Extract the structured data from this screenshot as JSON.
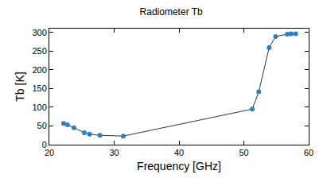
{
  "chart_data": {
    "type": "line",
    "title": "Radiometer Tb",
    "x_label": "Frequency [GHz]",
    "y_label": "Tb [K]",
    "x": [
      22.2,
      22.8,
      23.8,
      25.4,
      26.2,
      27.8,
      31.4,
      51.3,
      52.3,
      53.9,
      54.9,
      56.7,
      57.3,
      58.0
    ],
    "values": [
      57,
      53,
      45,
      32,
      28,
      25,
      23,
      95,
      141,
      259,
      289,
      295,
      296,
      296
    ],
    "color": "#2f7fc1",
    "marker": "circle",
    "xlim": [
      20,
      60
    ],
    "xticks": [
      20,
      30,
      40,
      50,
      60
    ],
    "ylim": [
      0,
      310
    ],
    "yticks": [
      0,
      50,
      100,
      150,
      200,
      250,
      300
    ],
    "grid": false
  }
}
